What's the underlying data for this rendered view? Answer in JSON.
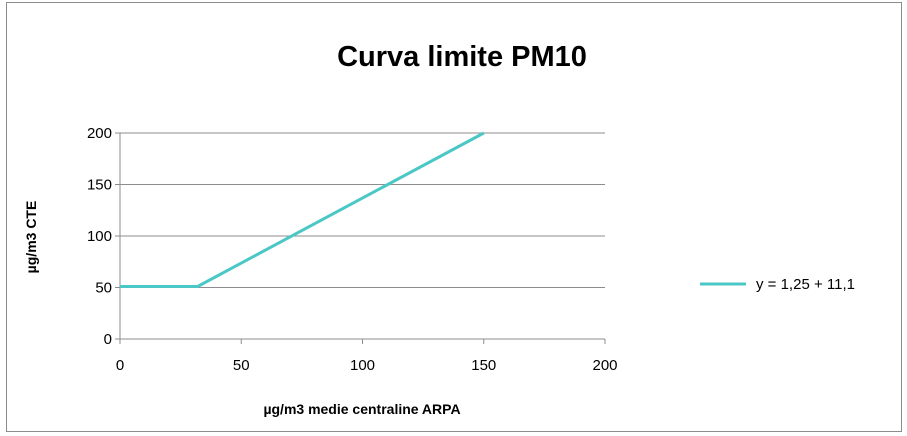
{
  "chart_data": {
    "type": "line",
    "title": "Curva limite PM10",
    "xlabel": "µg/m3 medie centraline ARPA",
    "ylabel": "µg/m3 CTE",
    "xlim": [
      0,
      200
    ],
    "ylim": [
      0,
      200
    ],
    "x_ticks": [
      0,
      50,
      100,
      150,
      200
    ],
    "y_ticks": [
      0,
      50,
      100,
      150,
      200
    ],
    "grid": true,
    "legend_position": "right",
    "series": [
      {
        "name": "y = 1,25 + 11,1",
        "color": "#4bc8c6",
        "x": [
          0,
          32,
          150
        ],
        "y": [
          51,
          51,
          200
        ]
      }
    ]
  }
}
